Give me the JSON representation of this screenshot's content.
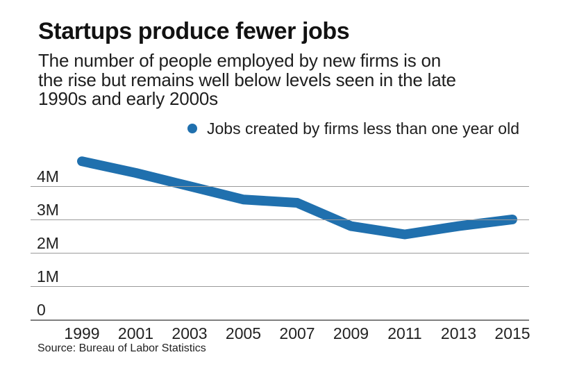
{
  "title": "Startups produce fewer jobs",
  "subtitle_lines": [
    "The number of people employed by new firms is on",
    "the rise but remains well below levels seen in the late",
    "1990s and early 2000s"
  ],
  "legend": {
    "marker": "dot-icon",
    "label": "Jobs created by firms less than one year old"
  },
  "source": "Source: Bureau of Labor Statistics",
  "colors": {
    "line": "#2070AE",
    "grid": "#9A9A9A",
    "zero_axis": "#7F7F7F",
    "text": "#1E1E1E"
  },
  "chart_data": {
    "type": "line",
    "title": "Startups produce fewer jobs",
    "x": [
      1999,
      2001,
      2003,
      2005,
      2007,
      2009,
      2011,
      2013,
      2015
    ],
    "xtick_labels": [
      "1999",
      "2001",
      "2003",
      "2005",
      "2007",
      "2009",
      "2011",
      "2013",
      "2015"
    ],
    "series": [
      {
        "name": "Jobs created by firms less than one year old",
        "values": [
          4.75,
          4.4,
          4.0,
          3.6,
          3.5,
          2.8,
          2.55,
          2.8,
          3.0
        ]
      }
    ],
    "unit": "millions of jobs",
    "xlabel": "",
    "ylabel": "",
    "ylim": [
      0,
      5
    ],
    "yticks": [
      {
        "label": "0",
        "value": 0
      },
      {
        "label": "1M",
        "value": 1
      },
      {
        "label": "2M",
        "value": 2
      },
      {
        "label": "3M",
        "value": 3
      },
      {
        "label": "4M",
        "value": 4
      }
    ],
    "grid": "horizontal",
    "legend_position": "top-right"
  }
}
